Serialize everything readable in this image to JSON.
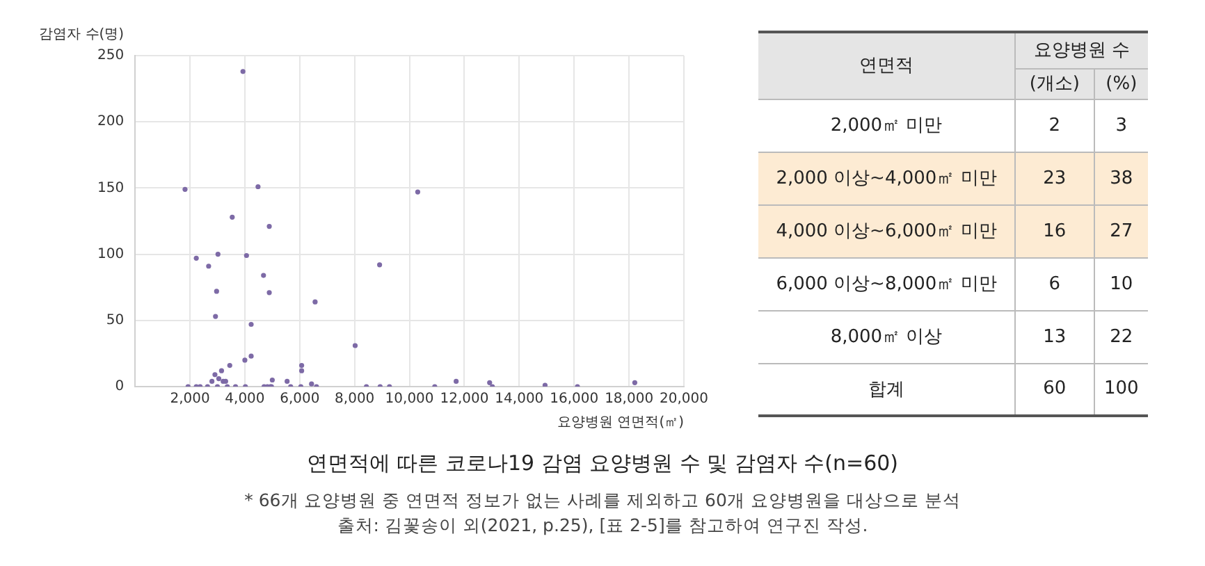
{
  "chart_data": [
    {
      "type": "scatter",
      "title": "연면적에 따른 코로나19 감염 요양병원 수 및 감염자 수(n=60)",
      "xlabel": "요양병원 연면적(㎡)",
      "ylabel": "감염자 수(명)",
      "annotations": [
        "* 66개 요양병원 중 연면적 정보가 없는 사례를 제외하고 60개 요양병원을 대상으로 분석",
        "출처: 김꽃송이 외(2021, p.25), [표 2-5]를 참고하여 연구진 작성."
      ],
      "x": [
        3930,
        1820,
        4480,
        3540,
        4890,
        2230,
        3020,
        4060,
        2680,
        4680,
        2970,
        4890,
        6560,
        2930,
        4230,
        8020,
        8910,
        4230,
        4000,
        3450,
        3150,
        2910,
        2800,
        3050,
        3210,
        3300,
        6070,
        6070,
        5540,
        5000,
        6430,
        10300,
        1930,
        2230,
        2370,
        2640,
        3000,
        3360,
        3660,
        4020,
        4700,
        4820,
        4930,
        4970,
        5670,
        6040,
        6610,
        8430,
        8930,
        9270,
        10920,
        11700,
        12920,
        13020,
        14940,
        16120,
        18210
      ],
      "series": [
        {
          "color": "#7d6aa6",
          "values": [
            238,
            149,
            151,
            128,
            121,
            97,
            100,
            99,
            91,
            84,
            72,
            71,
            64,
            53,
            47,
            31,
            92,
            23,
            20,
            16,
            12,
            9,
            4,
            6,
            4,
            4,
            16,
            12,
            4,
            5,
            2,
            147,
            0,
            0,
            0,
            0,
            0,
            0,
            0,
            0,
            0,
            0,
            0,
            0,
            0,
            0,
            0,
            0,
            0,
            0,
            0,
            4,
            3,
            0,
            1,
            0,
            3
          ]
        }
      ],
      "xlim": [
        0,
        20000
      ],
      "xticks": [
        {
          "value": 0,
          "label": null
        },
        {
          "value": 2000,
          "label": "2,000"
        },
        {
          "value": 4000,
          "label": "4,000"
        },
        {
          "value": 6000,
          "label": "6,000"
        },
        {
          "value": 8000,
          "label": "8,000"
        },
        {
          "value": 10000,
          "label": "10,000"
        },
        {
          "value": 12000,
          "label": "12,000"
        },
        {
          "value": 14000,
          "label": "14,000"
        },
        {
          "value": 16000,
          "label": "16,000"
        },
        {
          "value": 18000,
          "label": "18,000"
        },
        {
          "value": 20000,
          "label": "20,000"
        }
      ],
      "ylim": [
        0,
        250
      ],
      "yticks": [
        0,
        50,
        100,
        150,
        200,
        250
      ],
      "grid": true,
      "marker": "circle",
      "legend": false
    },
    {
      "type": "other",
      "data_labels": true,
      "annotations": [
        "연면적",
        "요양병원 수"
      ],
      "categories": [
        "2,000㎡ 미만",
        "2,000 이상~4,000㎡ 미만",
        "4,000 이상~6,000㎡ 미만",
        "6,000 이상~8,000㎡ 미만",
        "8,000㎡ 이상",
        "합계"
      ],
      "colors": [
        "#ffffff",
        "#fdebd3",
        "#fdebd3",
        "#ffffff",
        "#ffffff",
        "#ffffff"
      ],
      "series": [
        {
          "name": "(개소)",
          "colors": [
            "#ffffff",
            "#fdebd3",
            "#fdebd3",
            "#ffffff",
            "#ffffff",
            "#ffffff"
          ],
          "values": [
            2,
            23,
            16,
            6,
            13,
            60
          ]
        },
        {
          "name": "(%)",
          "colors": [
            "#ffffff",
            "#fdebd3",
            "#fdebd3",
            "#ffffff",
            "#ffffff",
            "#ffffff"
          ],
          "values": [
            3,
            38,
            27,
            10,
            22,
            100
          ]
        }
      ]
    }
  ]
}
